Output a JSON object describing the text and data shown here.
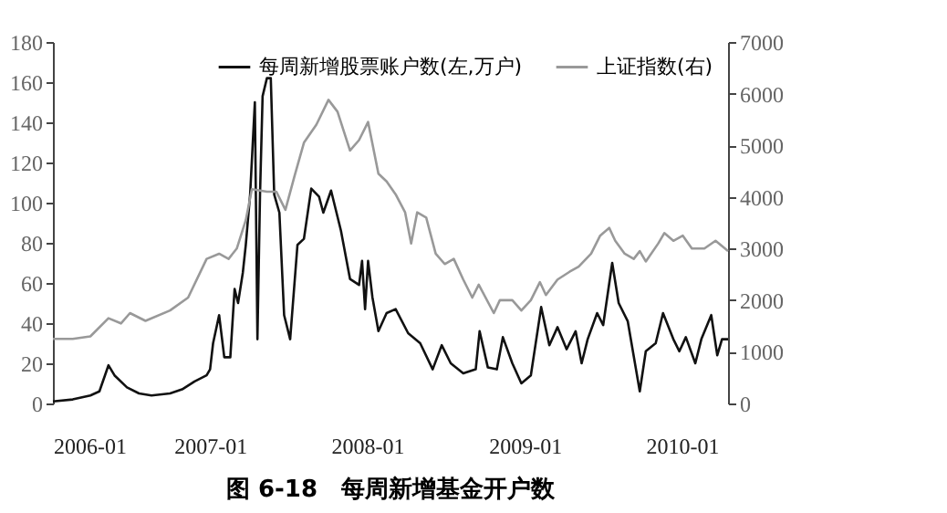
{
  "chart_data": {
    "type": "line",
    "title": "图 6-18　每周新增基金开户数",
    "legend": "top",
    "grid": false,
    "marker": "none",
    "line_style": "solid",
    "xlim": [
      "2006-01-01",
      "2010-04-18"
    ],
    "xticks": [
      {
        "value": "2006-01-01",
        "label": "2006-01"
      },
      {
        "value": "2007-01-01",
        "label": "2007-01"
      },
      {
        "value": "2008-01-01",
        "label": "2008-01"
      },
      {
        "value": "2009-01-01",
        "label": "2009-01"
      },
      {
        "value": "2010-01-01",
        "label": "2010-01"
      }
    ],
    "ylim": [
      0,
      180
    ],
    "yticks": [
      0,
      20,
      40,
      60,
      80,
      100,
      120,
      140,
      160,
      180
    ],
    "y2lim": [
      0,
      7000
    ],
    "y2ticks": [
      0,
      1000,
      2000,
      3000,
      4000,
      5000,
      6000,
      7000
    ],
    "series": [
      {
        "name": "每周新增股票账户数(左,万户)",
        "color": "#111111",
        "axis": "y",
        "x": [
          "2006-01-01",
          "2006-02-16",
          "2006-03-29",
          "2006-04-19",
          "2006-05-10",
          "2006-05-24",
          "2006-06-22",
          "2006-07-20",
          "2006-08-18",
          "2006-09-30",
          "2006-10-28",
          "2006-11-26",
          "2006-12-24",
          "2007-01-01",
          "2007-01-08",
          "2007-01-22",
          "2007-02-03",
          "2007-02-17",
          "2007-02-27",
          "2007-03-07",
          "2007-03-18",
          "2007-03-25",
          "2007-04-04",
          "2007-04-15",
          "2007-04-21",
          "2007-04-27",
          "2007-05-03",
          "2007-05-13",
          "2007-05-22",
          "2007-05-30",
          "2007-06-11",
          "2007-06-22",
          "2007-07-06",
          "2007-07-23",
          "2007-08-07",
          "2007-08-24",
          "2007-09-11",
          "2007-09-21",
          "2007-10-09",
          "2007-11-01",
          "2007-11-22",
          "2007-12-13",
          "2007-12-20",
          "2007-12-27",
          "2008-01-03",
          "2008-01-13",
          "2008-01-27",
          "2008-02-15",
          "2008-03-07",
          "2008-04-05",
          "2008-05-03",
          "2008-06-01",
          "2008-06-22",
          "2008-07-13",
          "2008-08-11",
          "2008-09-09",
          "2008-09-18",
          "2008-10-07",
          "2008-10-28",
          "2008-11-11",
          "2008-12-03",
          "2008-12-24",
          "2009-01-15",
          "2009-02-08",
          "2009-02-27",
          "2009-03-18",
          "2009-04-08",
          "2009-04-29",
          "2009-05-13",
          "2009-05-27",
          "2009-06-18",
          "2009-07-02",
          "2009-07-23",
          "2009-08-07",
          "2009-08-28",
          "2009-09-25",
          "2009-10-09",
          "2009-11-01",
          "2009-11-18",
          "2009-12-12",
          "2009-12-26",
          "2010-01-10",
          "2010-02-01",
          "2010-02-15",
          "2010-03-10",
          "2010-03-24",
          "2010-04-04",
          "2010-04-18"
        ],
        "values": [
          1,
          2,
          4,
          6,
          19,
          14,
          8,
          5,
          4,
          5,
          7,
          11,
          14,
          17,
          30,
          44,
          23,
          23,
          57,
          50,
          65,
          79,
          104,
          150,
          32,
          104,
          153,
          162,
          162,
          104,
          95,
          44,
          32,
          79,
          82,
          107,
          103,
          95,
          106,
          86,
          62,
          59,
          71,
          47,
          71,
          53,
          36,
          45,
          47,
          35,
          30,
          17,
          29,
          20,
          15,
          17,
          36,
          18,
          17,
          33,
          20,
          10,
          14,
          48,
          29,
          38,
          27,
          36,
          20,
          32,
          45,
          39,
          70,
          50,
          41,
          6,
          26,
          30,
          45,
          32,
          26,
          33,
          20,
          32,
          44,
          24,
          32,
          32
        ]
      },
      {
        "name": "上证指数(右)",
        "color": "#999999",
        "axis": "y2",
        "x": [
          "2006-01-01",
          "2006-02-16",
          "2006-03-29",
          "2006-05-10",
          "2006-06-08",
          "2006-06-29",
          "2006-08-04",
          "2006-09-30",
          "2006-11-11",
          "2006-12-24",
          "2007-01-22",
          "2007-02-13",
          "2007-03-04",
          "2007-03-25",
          "2007-04-08",
          "2007-05-13",
          "2007-06-04",
          "2007-06-25",
          "2007-07-16",
          "2007-08-07",
          "2007-09-05",
          "2007-10-03",
          "2007-10-24",
          "2007-11-22",
          "2007-12-13",
          "2008-01-03",
          "2008-01-27",
          "2008-02-15",
          "2008-03-07",
          "2008-03-29",
          "2008-04-12",
          "2008-04-26",
          "2008-05-17",
          "2008-06-08",
          "2008-06-29",
          "2008-07-20",
          "2008-08-11",
          "2008-09-01",
          "2008-09-16",
          "2008-10-21",
          "2008-11-04",
          "2008-12-03",
          "2008-12-24",
          "2009-01-15",
          "2009-02-05",
          "2009-02-19",
          "2009-03-18",
          "2009-04-15",
          "2009-05-06",
          "2009-06-04",
          "2009-06-25",
          "2009-07-16",
          "2009-07-30",
          "2009-08-21",
          "2009-09-11",
          "2009-09-25",
          "2009-10-09",
          "2009-11-07",
          "2009-11-21",
          "2009-12-12",
          "2010-01-03",
          "2010-01-24",
          "2010-02-22",
          "2010-03-20",
          "2010-04-11",
          "2010-04-18"
        ],
        "values": [
          1250,
          1250,
          1300,
          1650,
          1550,
          1750,
          1600,
          1800,
          2050,
          2800,
          2900,
          2800,
          3000,
          3550,
          4150,
          4100,
          4100,
          3750,
          4400,
          5050,
          5400,
          5880,
          5650,
          4900,
          5100,
          5450,
          4450,
          4300,
          4050,
          3700,
          3100,
          3700,
          3600,
          2900,
          2700,
          2800,
          2400,
          2050,
          2300,
          1750,
          2000,
          2000,
          1800,
          2000,
          2350,
          2100,
          2400,
          2550,
          2650,
          2900,
          3250,
          3400,
          3150,
          2900,
          2800,
          2950,
          2750,
          3100,
          3300,
          3150,
          3250,
          3000,
          3000,
          3150,
          3000,
          2950
        ]
      }
    ]
  }
}
